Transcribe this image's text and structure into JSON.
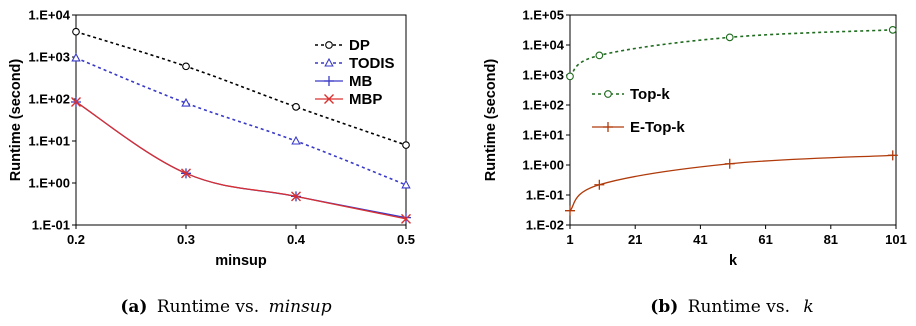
{
  "chart_data": [
    {
      "type": "line",
      "caption_label": "(a)",
      "caption_text": "Runtime vs.",
      "caption_var": "minsup",
      "xlabel": "minsup",
      "ylabel": "Runtime (second)",
      "yscale": "log",
      "ylim": [
        0.1,
        10000
      ],
      "xlim": [
        0.2,
        0.5
      ],
      "x_ticks": [
        "0.2",
        "0.3",
        "0.4",
        "0.5"
      ],
      "y_ticks": [
        "1.E-01",
        "1.E+00",
        "1.E+01",
        "1.E+02",
        "1.E+03",
        "1.E+04"
      ],
      "legend_position": "top-right",
      "series": [
        {
          "name": "DP",
          "color": "#000000",
          "dash": "dashed",
          "marker": "circle",
          "x": [
            0.2,
            0.3,
            0.4,
            0.5
          ],
          "values": [
            4000,
            600,
            65,
            8
          ]
        },
        {
          "name": "TODIS",
          "color": "#3a3ac8",
          "dash": "dashed",
          "marker": "triangle",
          "x": [
            0.2,
            0.3,
            0.4,
            0.5
          ],
          "values": [
            950,
            80,
            10,
            0.9
          ]
        },
        {
          "name": "MB",
          "color": "#3a3ac8",
          "dash": "solid",
          "marker": "plus",
          "x": [
            0.2,
            0.3,
            0.4,
            0.5
          ],
          "values": [
            85,
            1.7,
            0.48,
            0.15
          ]
        },
        {
          "name": "MBP",
          "color": "#d93030",
          "dash": "solid",
          "marker": "x",
          "x": [
            0.2,
            0.3,
            0.4,
            0.5
          ],
          "values": [
            85,
            1.7,
            0.48,
            0.14
          ]
        }
      ]
    },
    {
      "type": "line",
      "caption_label": "(b)",
      "caption_text": "Runtime vs.",
      "caption_var": "k",
      "xlabel": "k",
      "ylabel": "Runtime (second)",
      "yscale": "log",
      "ylim": [
        0.01,
        100000
      ],
      "xlim": [
        1,
        101
      ],
      "x_ticks": [
        "1",
        "21",
        "41",
        "61",
        "81",
        "101"
      ],
      "y_ticks": [
        "1.E-02",
        "1.E-01",
        "1.E+00",
        "1.E+01",
        "1.E+02",
        "1.E+03",
        "1.E+04",
        "1.E+05"
      ],
      "legend_position": "center-left",
      "series": [
        {
          "name": "Top-k",
          "color": "#1f6b1f",
          "dash": "dashed",
          "marker": "circle",
          "x": [
            1,
            10,
            50,
            100
          ],
          "values": [
            900,
            4500,
            18000,
            32000
          ]
        },
        {
          "name": "E-Top-k",
          "color": "#b03a0a",
          "dash": "solid",
          "marker": "plus",
          "x": [
            1,
            10,
            50,
            100
          ],
          "values": [
            0.03,
            0.22,
            1.1,
            2.1
          ]
        }
      ]
    }
  ]
}
